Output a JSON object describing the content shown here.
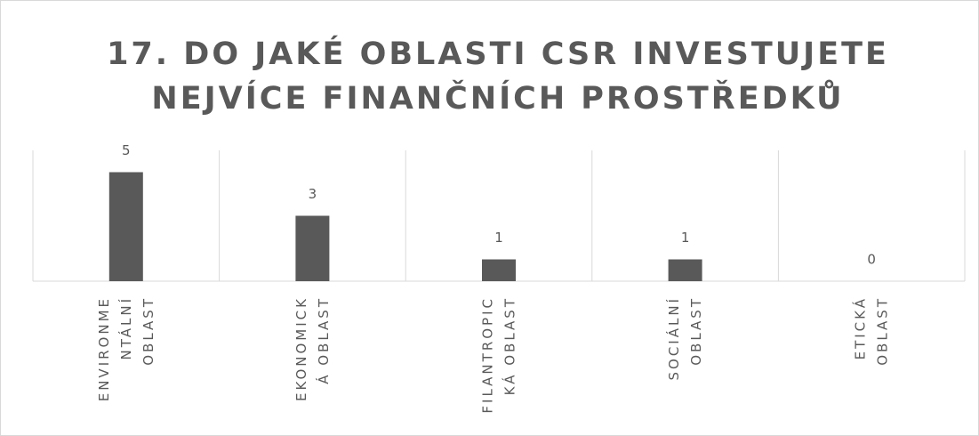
{
  "chart_data": {
    "type": "bar",
    "title": "17. DO JAKÉ OBLASTI CSR INVESTUJETE\nNEJVÍCE FINANČNÍCH PROSTŘEDKŮ",
    "categories": [
      "ENVIRONME\nNTÁLNÍ\nOBLAST",
      "EKONOMICK\nÁ OBLAST",
      "FILANTROPIC\nKÁ OBLAST",
      "SOCIÁLNÍ\nOBLAST",
      "ETICKÁ\nOBLAST"
    ],
    "values": [
      5,
      3,
      1,
      1,
      0
    ],
    "color": "#595959",
    "ylim": [
      0,
      6
    ]
  }
}
